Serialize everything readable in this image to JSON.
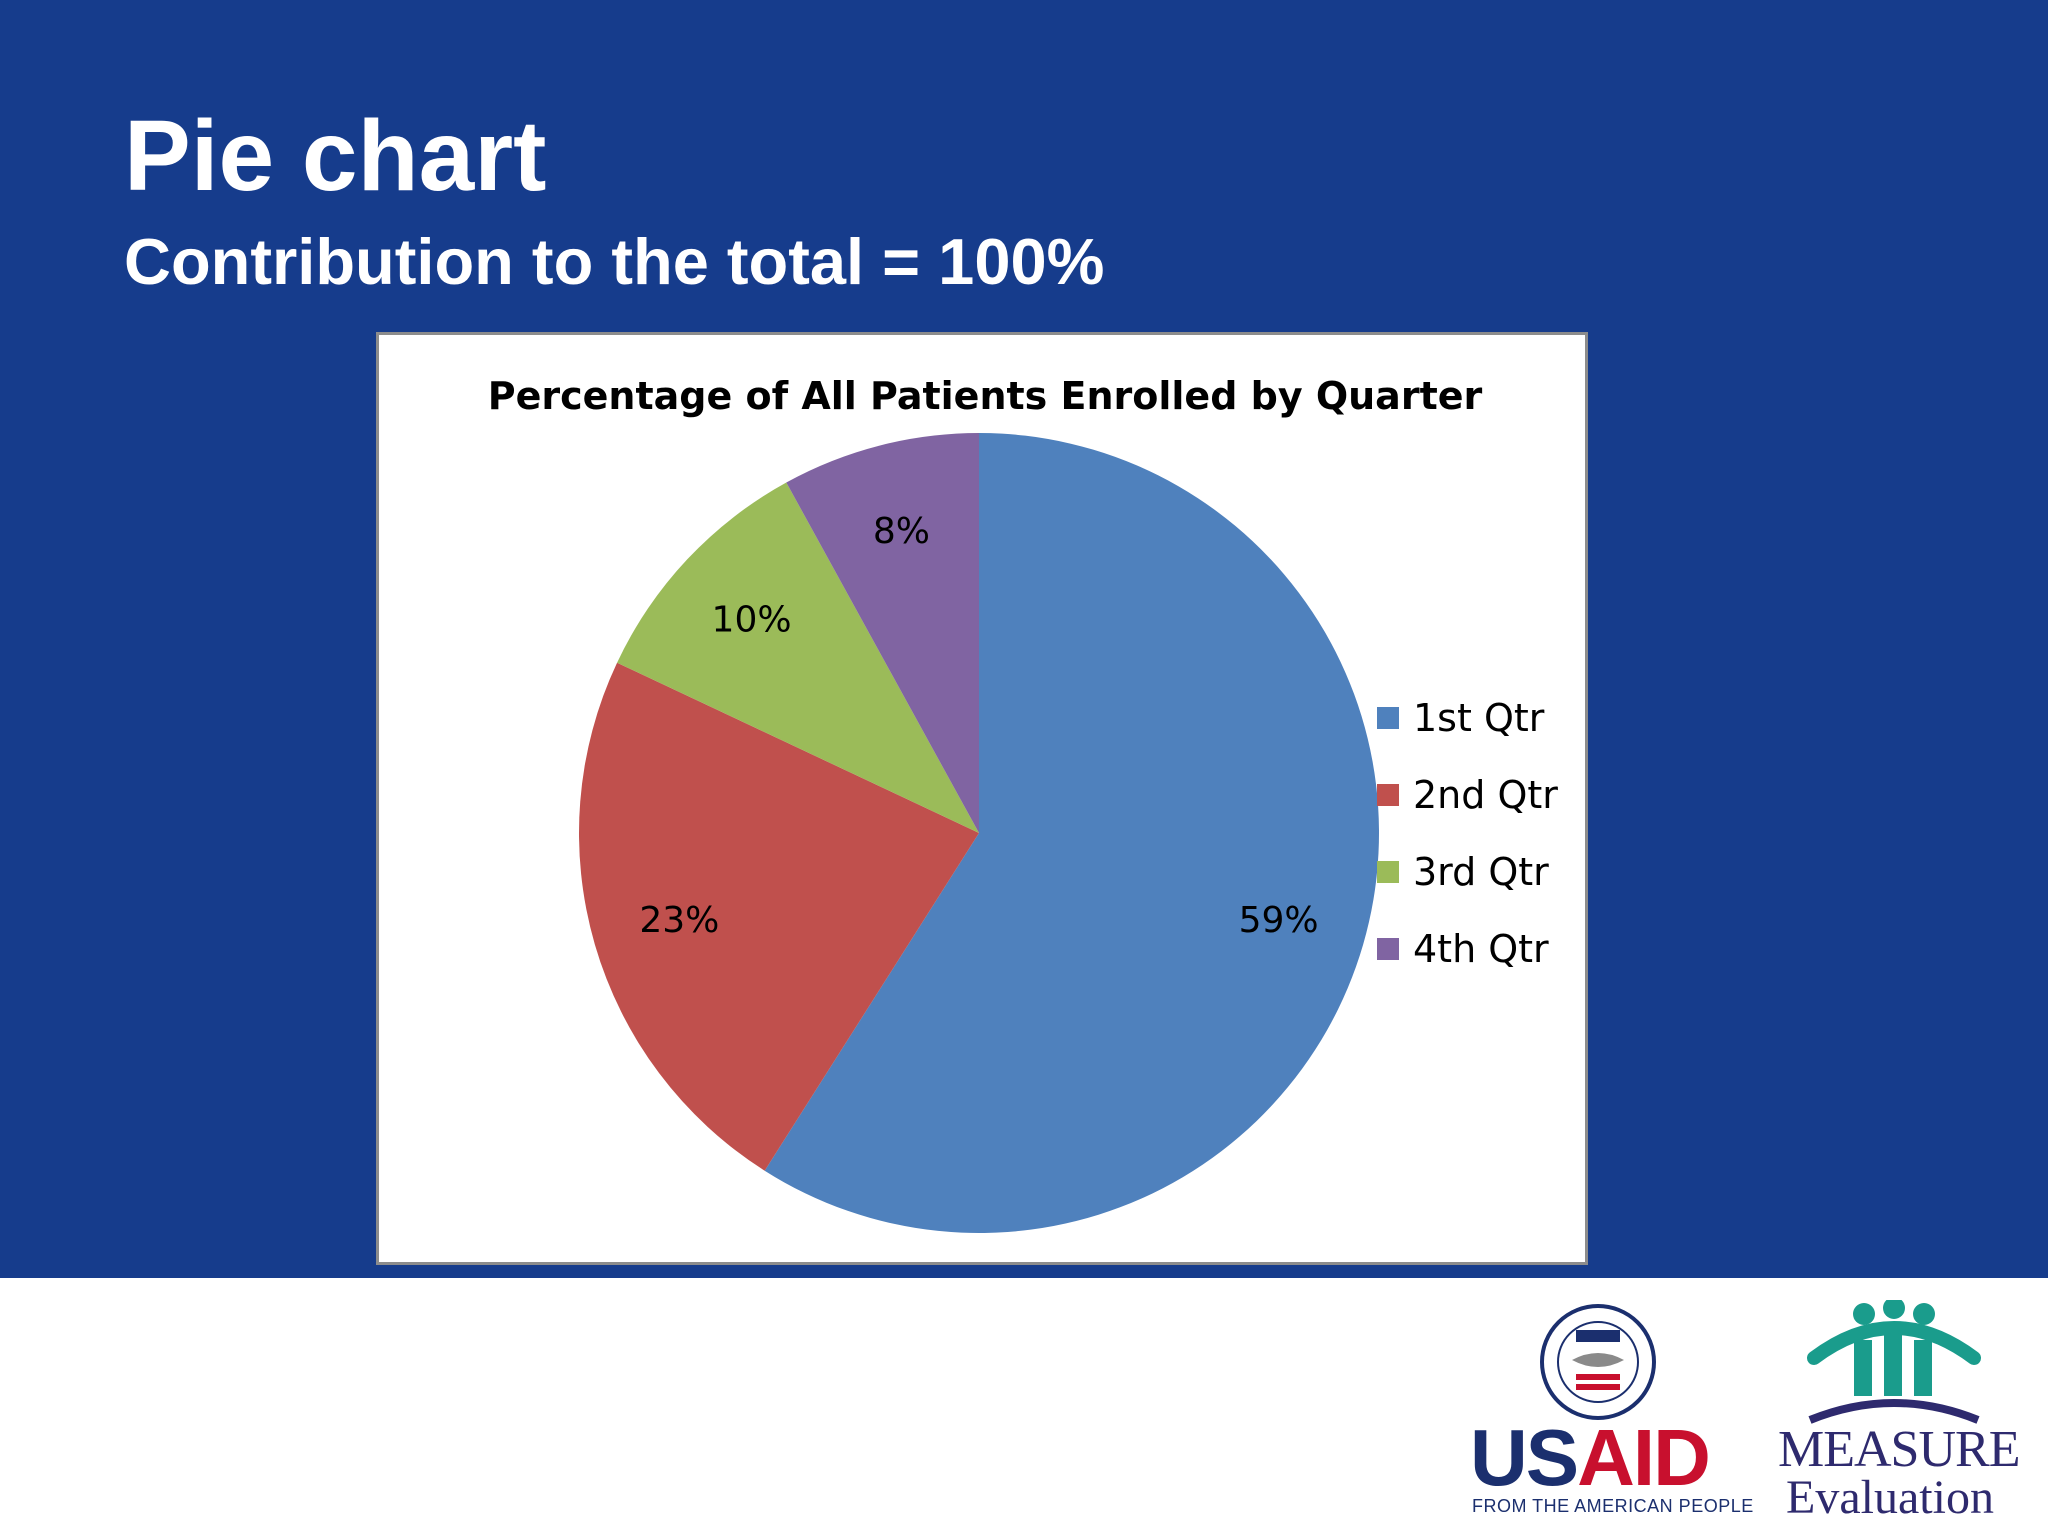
{
  "slide": {
    "title": "Pie chart",
    "subtitle": "Contribution to the total = 100%"
  },
  "chart_data": {
    "type": "pie",
    "title": "Percentage of All Patients Enrolled by Quarter",
    "categories": [
      "1st Qtr",
      "2nd Qtr",
      "3rd Qtr",
      "4th Qtr"
    ],
    "values": [
      59,
      23,
      10,
      8
    ],
    "data_labels": [
      "59%",
      "23%",
      "10%",
      "8%"
    ],
    "colors": [
      "#4f81bd",
      "#c0504d",
      "#9bbb59",
      "#8064a2"
    ],
    "start_angle_deg": 0,
    "direction": "clockwise",
    "legend_position": "right"
  },
  "logos": {
    "usaid_word_left": "US",
    "usaid_word_right": "AID",
    "usaid_tagline": "FROM THE AMERICAN PEOPLE",
    "measure_word": "MEASURE",
    "evaluation_word": "Evaluation",
    "usaid_seal_icon": "usaid-seal-icon",
    "measure_people_icon": "measure-people-icon"
  }
}
